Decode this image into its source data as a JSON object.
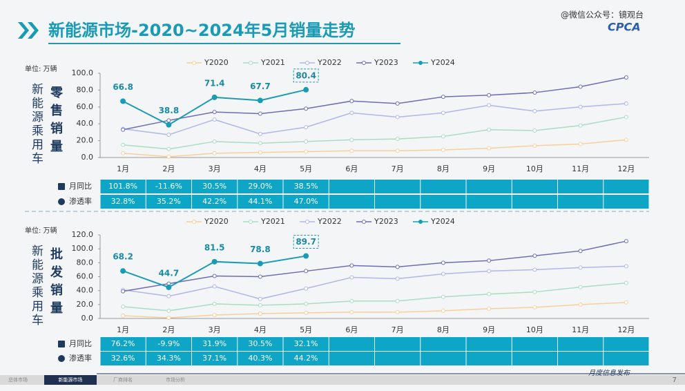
{
  "header": {
    "title": "新能源市场-2020~2024年5月销量走势",
    "watermark": "@微信公众号：镜观台",
    "logo": "CPCA"
  },
  "chart_data": [
    {
      "type": "line",
      "ylabel": "单位: 万辆",
      "side_label": "新能源乘用车",
      "subtitle": "零售销量",
      "categories": [
        "1月",
        "2月",
        "3月",
        "4月",
        "5月",
        "6月",
        "7月",
        "8月",
        "9月",
        "10月",
        "11月",
        "12月"
      ],
      "ylim": [
        0,
        100
      ],
      "yticks": [
        {
          "value": 0,
          "label": "0.0"
        },
        {
          "value": 20,
          "label": "20.0"
        },
        {
          "value": 40,
          "label": "40.0"
        },
        {
          "value": 60,
          "label": "60.0"
        },
        {
          "value": 80,
          "label": "80.0"
        },
        {
          "value": 100,
          "label": "100.0"
        }
      ],
      "series": [
        {
          "name": "Y2020",
          "color": "#f6cf9a",
          "values": [
            5,
            1,
            5,
            6,
            7,
            8,
            8,
            9,
            11,
            14,
            16,
            21
          ]
        },
        {
          "name": "Y2021",
          "color": "#a9dcc3",
          "values": [
            15,
            10,
            19,
            17,
            19,
            21,
            22,
            25,
            33,
            32,
            38,
            48
          ]
        },
        {
          "name": "Y2022",
          "color": "#aeb6ea",
          "values": [
            34,
            27,
            45,
            28,
            36,
            53,
            48,
            53,
            62,
            55,
            60,
            64
          ]
        },
        {
          "name": "Y2023",
          "color": "#6c6cb4",
          "values": [
            33,
            44,
            54,
            52,
            58,
            67,
            64,
            72,
            74,
            77,
            84,
            95
          ]
        },
        {
          "name": "Y2024",
          "color": "#1a9bb5",
          "values": [
            66.8,
            38.8,
            71.4,
            67.7,
            80.4,
            null,
            null,
            null,
            null,
            null,
            null,
            null
          ],
          "labeled": true
        }
      ]
    },
    {
      "type": "line",
      "ylabel": "单位: 万辆",
      "side_label": "新能源乘用车",
      "subtitle": "批发销量",
      "categories": [
        "1月",
        "2月",
        "3月",
        "4月",
        "5月",
        "6月",
        "7月",
        "8月",
        "9月",
        "10月",
        "11月",
        "12月"
      ],
      "ylim": [
        0,
        120
      ],
      "yticks": [
        {
          "value": 0,
          "label": "0.0"
        },
        {
          "value": 20,
          "label": "20.0"
        },
        {
          "value": 40,
          "label": "40.0"
        },
        {
          "value": 60,
          "label": "60.0"
        },
        {
          "value": 80,
          "label": "80.0"
        },
        {
          "value": 100,
          "label": "100.0"
        },
        {
          "value": 120,
          "label": "120.0"
        }
      ],
      "series": [
        {
          "name": "Y2020",
          "color": "#f6cf9a",
          "values": [
            4,
            1,
            5,
            7,
            8,
            9,
            9,
            11,
            14,
            16,
            20,
            23
          ]
        },
        {
          "name": "Y2021",
          "color": "#a9dcc3",
          "values": [
            17,
            11,
            21,
            19,
            21,
            25,
            25,
            31,
            35,
            38,
            45,
            51
          ]
        },
        {
          "name": "Y2022",
          "color": "#aeb6ea",
          "values": [
            41,
            32,
            46,
            28,
            43,
            59,
            57,
            64,
            68,
            70,
            73,
            75
          ]
        },
        {
          "name": "Y2023",
          "color": "#6c6cb4",
          "values": [
            39,
            50,
            61,
            60,
            68,
            76,
            74,
            80,
            83,
            90,
            97,
            111
          ]
        },
        {
          "name": "Y2024",
          "color": "#1a9bb5",
          "values": [
            68.2,
            44.7,
            81.5,
            78.8,
            89.7,
            null,
            null,
            null,
            null,
            null,
            null,
            null
          ],
          "labeled": true
        }
      ]
    }
  ],
  "tables": [
    {
      "rows": [
        {
          "label": "月同比",
          "values": [
            "101.8%",
            "-11.6%",
            "30.5%",
            "29.0%",
            "38.5%"
          ]
        },
        {
          "label": "渗透率",
          "values": [
            "32.8%",
            "35.2%",
            "42.2%",
            "44.1%",
            "47.0%"
          ]
        }
      ]
    },
    {
      "rows": [
        {
          "label": "月同比",
          "values": [
            "76.2%",
            "-9.9%",
            "31.9%",
            "30.5%",
            "32.1%"
          ]
        },
        {
          "label": "渗透率",
          "values": [
            "32.6%",
            "34.3%",
            "37.1%",
            "40.3%",
            "44.2%"
          ]
        }
      ]
    }
  ],
  "footer": {
    "tabs": [
      "总体市场",
      "新能源市场",
      "厂商排名",
      "市场分析"
    ],
    "release": "月度信息发布",
    "page": "7"
  }
}
